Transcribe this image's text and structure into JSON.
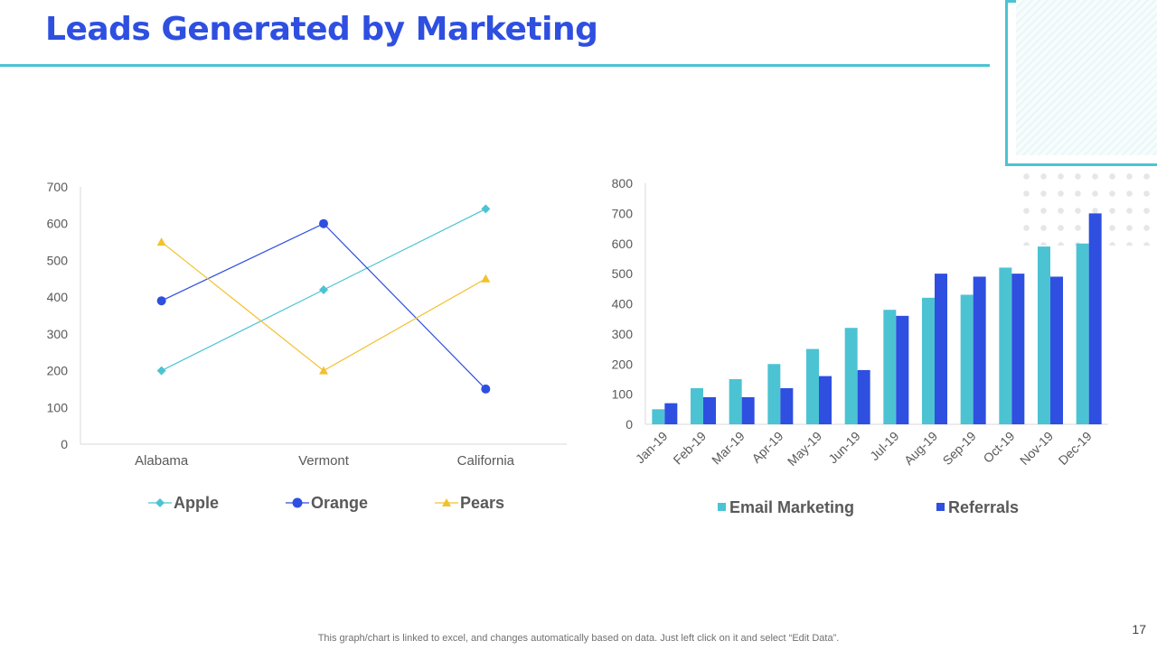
{
  "slide": {
    "title": "Leads Generated by Marketing",
    "footnote": "This graph/chart is linked to excel,  and changes automatically based on data. Just left click on it and select “Edit Data”.",
    "page_number": "17"
  },
  "colors": {
    "title": "#2e4fe0",
    "accent": "#4cc3d3",
    "apple": "#4cc3d3",
    "orange": "#2e4fe0",
    "pears": "#f2c12e",
    "email": "#4cc3d3",
    "referrals": "#2e4fe0"
  },
  "chart_data": [
    {
      "type": "line",
      "categories": [
        "Alabama",
        "Vermont",
        "California"
      ],
      "ylim": [
        0,
        700
      ],
      "yticks": [
        0,
        100,
        200,
        300,
        400,
        500,
        600,
        700
      ],
      "grid": false,
      "legend": "bottom",
      "series": [
        {
          "name": "Apple",
          "marker": "diamond",
          "color": "#4cc3d3",
          "values": [
            200,
            420,
            640
          ]
        },
        {
          "name": "Orange",
          "marker": "circle",
          "color": "#2e4fe0",
          "values": [
            390,
            600,
            150
          ]
        },
        {
          "name": "Pears",
          "marker": "triangle",
          "color": "#f2c12e",
          "values": [
            550,
            200,
            450
          ]
        }
      ]
    },
    {
      "type": "bar",
      "categories": [
        "Jan-19",
        "Feb-19",
        "Mar-19",
        "Apr-19",
        "May-19",
        "Jun-19",
        "Jul-19",
        "Aug-19",
        "Sep-19",
        "Oct-19",
        "Nov-19",
        "Dec-19"
      ],
      "ylim": [
        0,
        800
      ],
      "yticks": [
        0,
        100,
        200,
        300,
        400,
        500,
        600,
        700,
        800
      ],
      "grid": false,
      "legend": "bottom",
      "series": [
        {
          "name": "Email Marketing",
          "color": "#4cc3d3",
          "values": [
            50,
            120,
            150,
            200,
            250,
            320,
            380,
            420,
            430,
            520,
            590,
            600
          ]
        },
        {
          "name": "Referrals",
          "color": "#2e4fe0",
          "values": [
            70,
            90,
            90,
            120,
            160,
            180,
            360,
            500,
            490,
            500,
            490,
            700
          ]
        }
      ]
    }
  ]
}
